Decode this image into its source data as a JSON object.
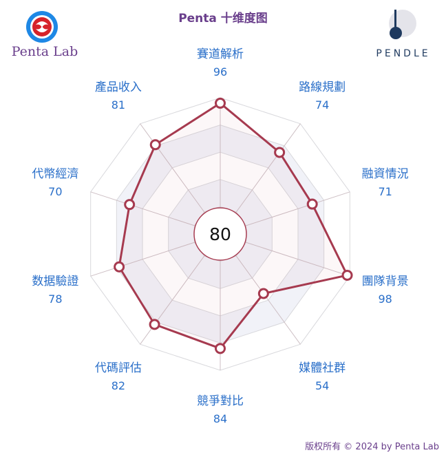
{
  "header": {
    "title": "Penta 十维度图",
    "brand_left": "Penta Lab",
    "brand_right": "PENDLE"
  },
  "footer": {
    "copyright": "版权所有 © 2024 by Penta Lab"
  },
  "colors": {
    "series": "#a63a4f",
    "label": "#2a6fc9",
    "grid": "#d8d8dc",
    "band": "#f1f2f8",
    "title": "#6a3f8c"
  },
  "chart_data": {
    "type": "radar",
    "center_value": "80",
    "range": [
      0,
      100
    ],
    "levels": 5,
    "categories": [
      "賽道解析",
      "路線規劃",
      "融資情況",
      "團隊背景",
      "媒體社群",
      "競爭對比",
      "代碼評估",
      "数据驗證",
      "代幣經濟",
      "產品收入"
    ],
    "series": [
      {
        "values": [
          96,
          74,
          71,
          98,
          54,
          84,
          82,
          78,
          70,
          81
        ]
      }
    ]
  }
}
